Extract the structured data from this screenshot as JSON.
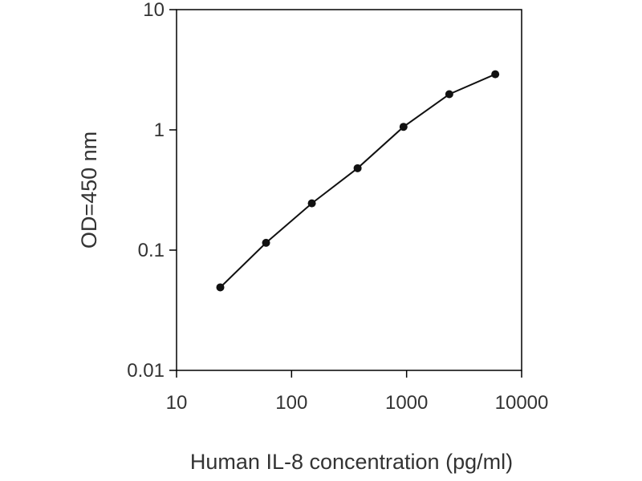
{
  "chart_data": {
    "type": "line",
    "title": "",
    "xlabel": "Human IL-8 concentration (pg/ml)",
    "ylabel": "OD=450 nm",
    "xscale": "log",
    "yscale": "log",
    "xlim": [
      10,
      10000
    ],
    "ylim": [
      0.01,
      10
    ],
    "xticks": [
      10,
      100,
      1000,
      10000
    ],
    "yticks": [
      0.01,
      0.1,
      1,
      10
    ],
    "xtick_labels": [
      "10",
      "100",
      "1000",
      "10000"
    ],
    "ytick_labels": [
      "0.01",
      "0.1",
      "1",
      "10"
    ],
    "grid": false,
    "legend": "none",
    "series": [
      {
        "x": [
          24,
          60,
          150,
          375,
          940,
          2350,
          5900
        ],
        "y": [
          0.049,
          0.115,
          0.245,
          0.48,
          1.06,
          1.98,
          2.9
        ],
        "color": "#111111",
        "marker": "circle"
      }
    ]
  }
}
